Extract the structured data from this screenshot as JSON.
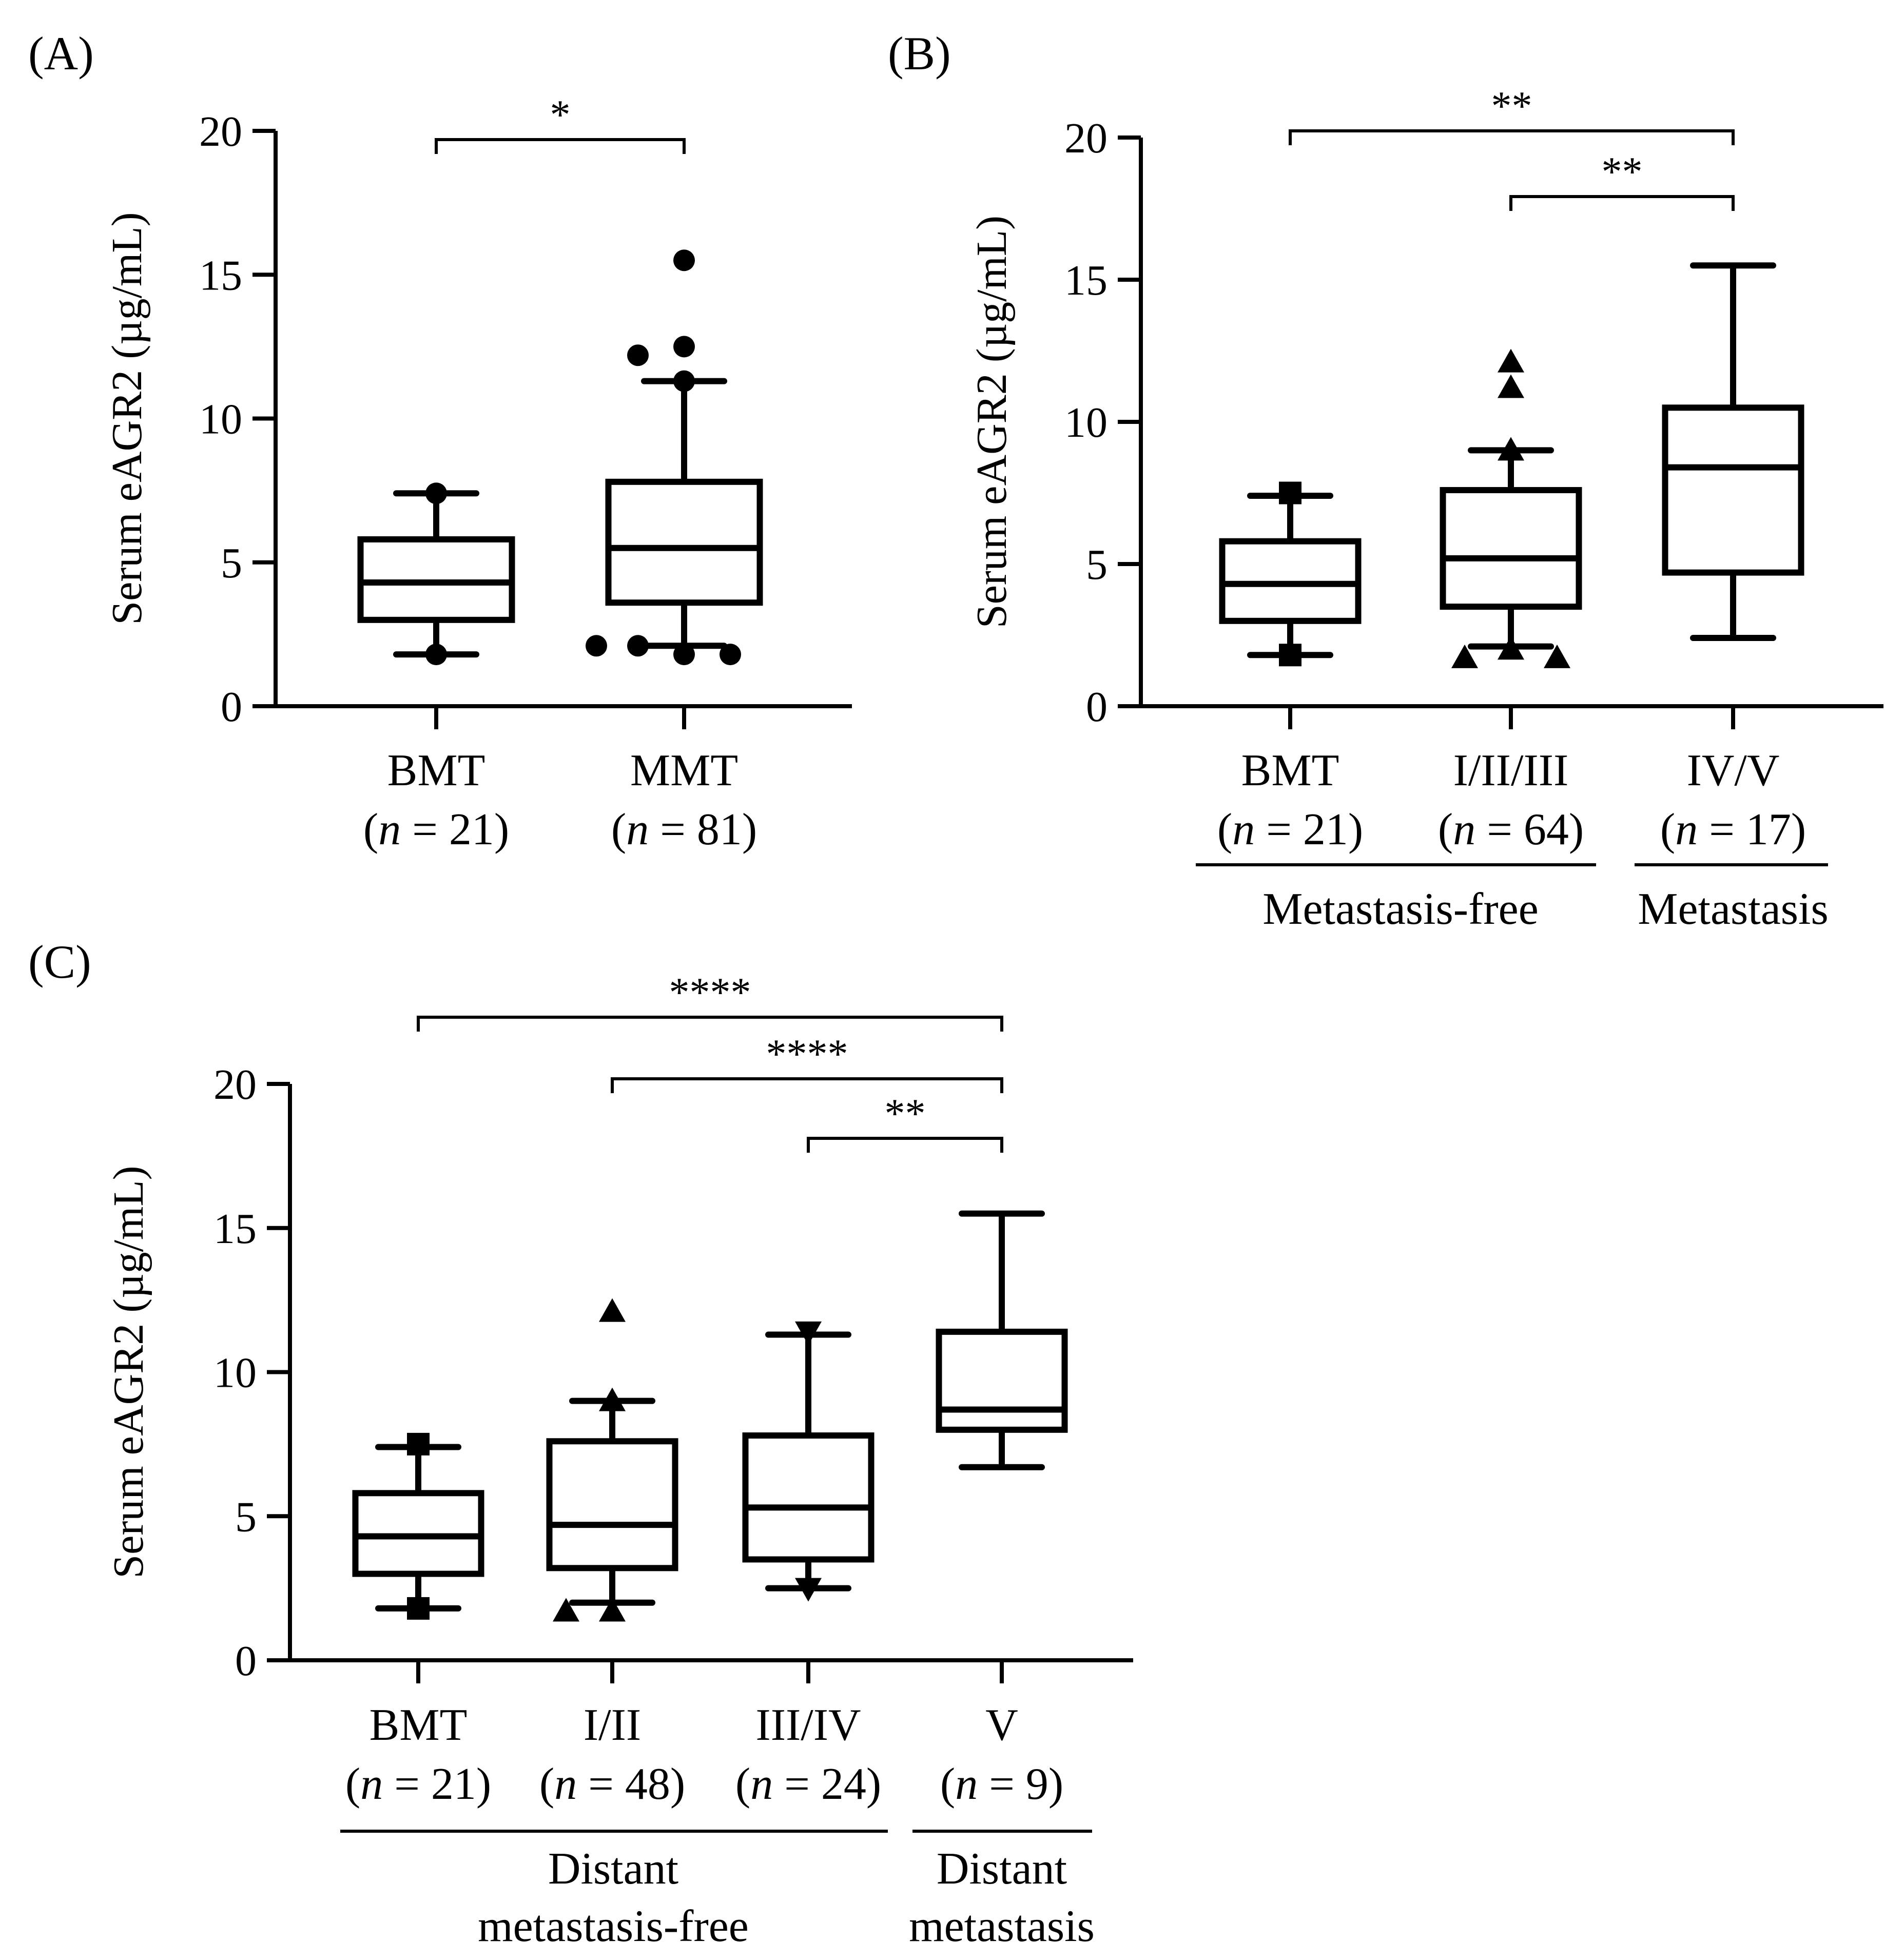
{
  "chart_data": [
    {
      "panel": "(A)",
      "type": "box",
      "ylabel": "Serum eAGR2 (µg/mL)",
      "ylim": [
        0,
        20
      ],
      "yticks": [
        0,
        5,
        10,
        15,
        20
      ],
      "categories": [
        {
          "name": "BMT",
          "n_prefix": "(",
          "n_var": "n",
          "n_suffix": " = 21)",
          "q1": 3.0,
          "median": 4.3,
          "q3": 5.8,
          "whisker_low": 1.8,
          "whisker_high": 7.4,
          "outlier_marker": "circle",
          "outliers": [
            1.8,
            7.4
          ]
        },
        {
          "name": "MMT",
          "n_prefix": "(",
          "n_var": "n",
          "n_suffix": " = 81)",
          "q1": 3.6,
          "median": 5.5,
          "q3": 7.8,
          "whisker_low": 2.1,
          "whisker_high": 11.3,
          "outlier_marker": "circle",
          "outliers": [
            15.5,
            12.5,
            12.2,
            11.3,
            1.8,
            2.1,
            1.8,
            2.1
          ]
        }
      ],
      "group_labels": [],
      "significance": [
        {
          "from": 0,
          "to": 1,
          "label": "*"
        }
      ]
    },
    {
      "panel": "(B)",
      "type": "box",
      "ylabel": "Serum eAGR2 (µg/mL)",
      "ylim": [
        0,
        20
      ],
      "yticks": [
        0,
        5,
        10,
        15,
        20
      ],
      "categories": [
        {
          "name": "BMT",
          "n_prefix": "(",
          "n_var": "n",
          "n_suffix": " = 21)",
          "q1": 3.0,
          "median": 4.3,
          "q3": 5.8,
          "whisker_low": 1.8,
          "whisker_high": 7.4,
          "outlier_marker": "square",
          "outliers": [
            7.5,
            1.8
          ]
        },
        {
          "name": "I/II/III",
          "n_prefix": "(",
          "n_var": "n",
          "n_suffix": " = 64)",
          "q1": 3.5,
          "median": 5.2,
          "q3": 7.6,
          "whisker_low": 2.1,
          "whisker_high": 9.0,
          "outlier_marker": "triangle",
          "outliers": [
            12.1,
            11.2,
            9.0,
            2.0,
            1.7,
            1.7
          ]
        },
        {
          "name": "IV/V",
          "n_prefix": "(",
          "n_var": "n",
          "n_suffix": " = 17)",
          "q1": 4.7,
          "median": 8.4,
          "q3": 10.5,
          "whisker_low": 2.4,
          "whisker_high": 15.5,
          "outlier_marker": "none",
          "outliers": []
        }
      ],
      "group_labels": [
        {
          "label": "Metastasis-free",
          "from": 0,
          "to": 1
        },
        {
          "label": "Metastasis",
          "from": 2,
          "to": 2
        }
      ],
      "significance": [
        {
          "from": 0,
          "to": 2,
          "label": "**"
        },
        {
          "from": 1,
          "to": 2,
          "label": "**"
        }
      ]
    },
    {
      "panel": "(C)",
      "type": "box",
      "ylabel": "Serum eAGR2 (µg/mL)",
      "ylim": [
        0,
        20
      ],
      "yticks": [
        0,
        5,
        10,
        15,
        20
      ],
      "categories": [
        {
          "name": "BMT",
          "n_prefix": "(",
          "n_var": "n",
          "n_suffix": " = 21)",
          "q1": 3.0,
          "median": 4.3,
          "q3": 5.8,
          "whisker_low": 1.8,
          "whisker_high": 7.4,
          "outlier_marker": "square",
          "outliers": [
            7.5,
            1.8
          ]
        },
        {
          "name": "I/II",
          "n_prefix": "(",
          "n_var": "n",
          "n_suffix": " = 48)",
          "q1": 3.2,
          "median": 4.7,
          "q3": 7.6,
          "whisker_low": 2.0,
          "whisker_high": 9.0,
          "outlier_marker": "triangle",
          "outliers": [
            12.1,
            9.0,
            1.7,
            1.7
          ]
        },
        {
          "name": "III/IV",
          "n_prefix": "(",
          "n_var": "n",
          "n_suffix": " = 24)",
          "q1": 3.5,
          "median": 5.3,
          "q3": 7.8,
          "whisker_low": 2.5,
          "whisker_high": 11.3,
          "outlier_marker": "triangle-down",
          "outliers": [
            11.4,
            2.5
          ]
        },
        {
          "name": "V",
          "n_prefix": "(",
          "n_var": "n",
          "n_suffix": " = 9)",
          "q1": 8.0,
          "median": 8.7,
          "q3": 11.4,
          "whisker_low": 6.7,
          "whisker_high": 15.5,
          "outlier_marker": "none",
          "outliers": []
        }
      ],
      "group_labels": [
        {
          "label": "Distant metastasis-free",
          "lines": [
            "Distant",
            "metastasis-free"
          ],
          "from": 0,
          "to": 2
        },
        {
          "label": "Distant metastasis",
          "lines": [
            "Distant",
            "metastasis"
          ],
          "from": 3,
          "to": 3
        }
      ],
      "significance": [
        {
          "from": 0,
          "to": 3,
          "label": "****"
        },
        {
          "from": 1,
          "to": 3,
          "label": "****"
        },
        {
          "from": 2,
          "to": 3,
          "label": "**"
        }
      ]
    }
  ]
}
